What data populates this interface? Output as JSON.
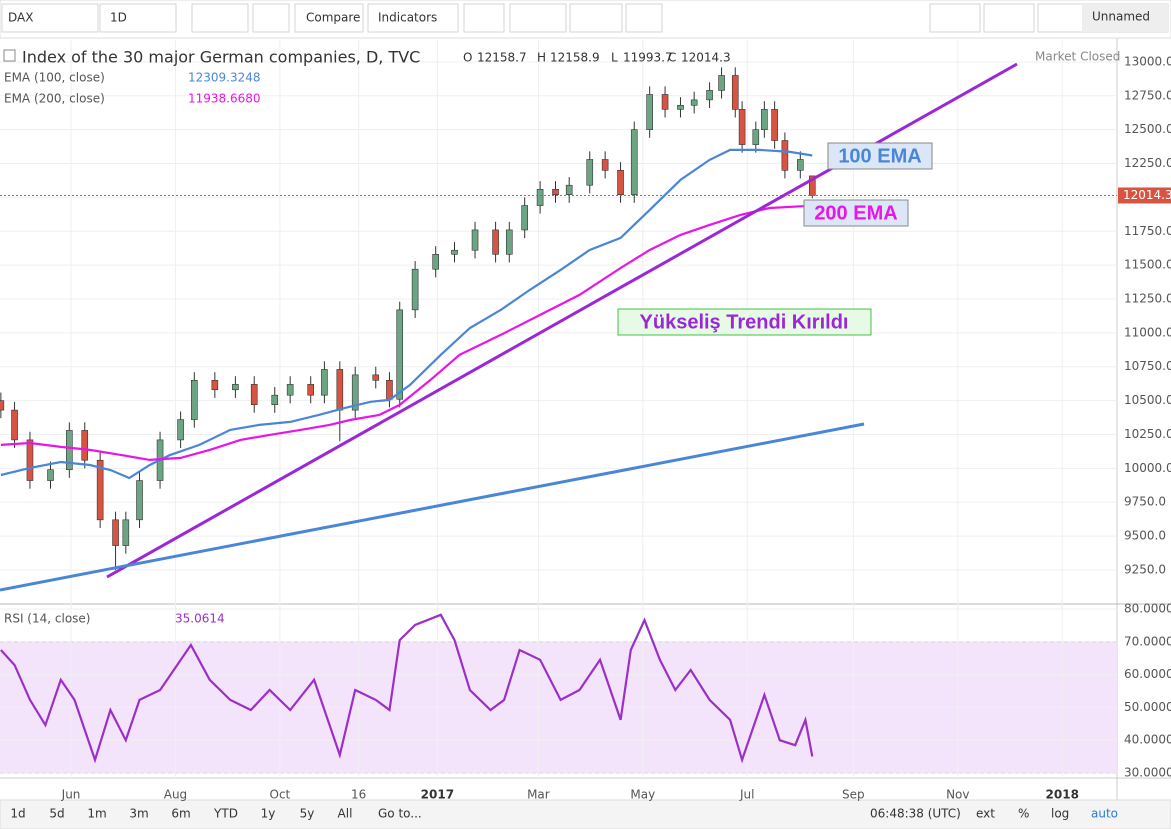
{
  "toolbar": {
    "symbol": "DAX",
    "interval": "1D",
    "compare": "Compare",
    "indicators": "Indicators",
    "layout": "Unnamed"
  },
  "bottom_bar": {
    "ranges": [
      "1d",
      "5d",
      "1m",
      "3m",
      "6m",
      "YTD",
      "1y",
      "5y",
      "All"
    ],
    "goto": "Go to...",
    "time": "06:48:38 (UTC)",
    "ext": "ext",
    "percent": "%",
    "log": "log",
    "auto": "auto"
  },
  "status": "Market Closed",
  "annotations": [
    "100 EMA",
    "200 EMA",
    "Yükseliş Trendi Kırıldı"
  ],
  "ohlc_letters": [
    "O",
    "H",
    "L",
    "C"
  ],
  "chart_data": [
    {
      "type": "candlestick",
      "title": "Index of the 30 major German companies, D, TVC",
      "xlim": [
        -41.5,
        611
      ],
      "ylim": [
        9006,
        13162
      ],
      "grid": true,
      "yticks": [
        {
          "value": 9250,
          "label": "9250.0"
        },
        {
          "value": 9500,
          "label": "9500.0"
        },
        {
          "value": 9750,
          "label": "9750.0"
        },
        {
          "value": 10000,
          "label": "10000.0"
        },
        {
          "value": 10250,
          "label": "10250.0"
        },
        {
          "value": 10500,
          "label": "10500.0"
        },
        {
          "value": 10750,
          "label": "10750.0"
        },
        {
          "value": 11000,
          "label": "11000.0"
        },
        {
          "value": 11250,
          "label": "11250.0"
        },
        {
          "value": 11500,
          "label": "11500.0"
        },
        {
          "value": 11750,
          "label": "11750.0"
        },
        {
          "value": 12000,
          "label": "12000.0"
        },
        {
          "value": 12250,
          "label": "12250.0"
        },
        {
          "value": 12500,
          "label": "12500.0"
        },
        {
          "value": 12750,
          "label": "12750.0"
        },
        {
          "value": 13000,
          "label": "13000.0"
        }
      ],
      "series": [
        {
          "type": "candlestick",
          "up_color": "#6ba583",
          "down_color": "#d75442",
          "x": [
            -41,
            -33,
            -24,
            -12,
            -1,
            8,
            17,
            26,
            32,
            40,
            52,
            64,
            72,
            84,
            96,
            107,
            119,
            128,
            140,
            148,
            157,
            166,
            178,
            186,
            192,
            201,
            213,
            224,
            236,
            248,
            256,
            265,
            274,
            283,
            291,
            303,
            312,
            321,
            329,
            338,
            347,
            356,
            364,
            373,
            380,
            388,
            392,
            400,
            405,
            411,
            417,
            426,
            433
          ],
          "open": [
            10500,
            10430,
            10210,
            9910,
            9990,
            10280,
            10060,
            9620,
            9430,
            9620,
            9910,
            10210,
            10360,
            10650,
            10580,
            10620,
            10470,
            10540,
            10620,
            10540,
            10730,
            10430,
            10690,
            10650,
            10510,
            11170,
            11470,
            11580,
            11610,
            11760,
            11580,
            11760,
            11940,
            12060,
            12020,
            12090,
            12280,
            12200,
            12020,
            12500,
            12760,
            12650,
            12680,
            12720,
            12790,
            12900,
            12650,
            12390,
            12500,
            12650,
            12420,
            12200,
            12158.7
          ],
          "high": [
            10560,
            10490,
            10270,
            10050,
            10340,
            10340,
            10120,
            9680,
            9680,
            9970,
            10270,
            10420,
            10710,
            10710,
            10680,
            10680,
            10600,
            10680,
            10680,
            10790,
            10790,
            10750,
            10750,
            10710,
            11230,
            11530,
            11640,
            11670,
            11820,
            11820,
            11820,
            12000,
            12120,
            12120,
            12150,
            12340,
            12340,
            12260,
            12560,
            12820,
            12820,
            12740,
            12780,
            12850,
            12960,
            12960,
            12710,
            12560,
            12710,
            12710,
            12480,
            12340,
            12158.9
          ],
          "low": [
            10370,
            10150,
            9850,
            9850,
            9930,
            10000,
            9560,
            9250,
            9370,
            9560,
            9850,
            10150,
            10300,
            10520,
            10520,
            10410,
            10410,
            10480,
            10480,
            10480,
            10200,
            10370,
            10590,
            10450,
            10450,
            11110,
            11410,
            11520,
            11550,
            11520,
            11520,
            11700,
            11880,
            11960,
            11960,
            12030,
            12140,
            11960,
            11960,
            12440,
            12590,
            12590,
            12620,
            12660,
            12730,
            12590,
            12330,
            12330,
            12440,
            12360,
            12140,
            12140,
            11993.7
          ],
          "close": [
            10430,
            10210,
            9910,
            9990,
            10280,
            10060,
            9620,
            9430,
            9620,
            9910,
            10210,
            10360,
            10650,
            10580,
            10620,
            10470,
            10540,
            10620,
            10540,
            10730,
            10430,
            10690,
            10650,
            10510,
            11170,
            11470,
            11580,
            11610,
            11760,
            11580,
            11760,
            11940,
            12060,
            12020,
            12090,
            12280,
            12200,
            12020,
            12500,
            12760,
            12650,
            12680,
            12720,
            12790,
            12900,
            12650,
            12390,
            12500,
            12650,
            12420,
            12200,
            12280,
            12014.3
          ]
        },
        {
          "type": "line",
          "name": "EMA (100, close)",
          "color": "#4a86d8",
          "x": [
            -41,
            -24,
            -6,
            11,
            23,
            34,
            46,
            58,
            75,
            93,
            110,
            128,
            145,
            160,
            175,
            186,
            198,
            216,
            233,
            251,
            268,
            286,
            303,
            321,
            338,
            356,
            373,
            385,
            402,
            420,
            433
          ],
          "values": [
            9951,
            10003,
            10047,
            10025,
            9988,
            9929,
            10025,
            10099,
            10173,
            10284,
            10321,
            10343,
            10395,
            10446,
            10491,
            10505,
            10616,
            10838,
            11036,
            11169,
            11317,
            11465,
            11612,
            11701,
            11908,
            12129,
            12277,
            12351,
            12351,
            12336,
            12309.3248
          ]
        },
        {
          "type": "line",
          "name": "EMA (200, close)",
          "color": "#e815e8",
          "x": [
            -41,
            -24,
            -6,
            11,
            29,
            46,
            64,
            81,
            99,
            116,
            134,
            151,
            163,
            180,
            192,
            210,
            227,
            251,
            274,
            297,
            321,
            338,
            356,
            373,
            391,
            408,
            433
          ],
          "values": [
            10173,
            10187,
            10158,
            10136,
            10099,
            10062,
            10077,
            10136,
            10210,
            10247,
            10284,
            10321,
            10357,
            10394,
            10468,
            10653,
            10838,
            10985,
            11133,
            11280,
            11479,
            11612,
            11723,
            11797,
            11871,
            11922,
            11938.668
          ],
          "value_labels": [
            null,
            null,
            null,
            null,
            null,
            null,
            null,
            null,
            null,
            null,
            null,
            null,
            null,
            null,
            null,
            null,
            null,
            null,
            null,
            null,
            null,
            null,
            null,
            null,
            null,
            null,
            "11938.6680"
          ]
        }
      ]
    },
    {
      "type": "line",
      "title": "RSI (14, close)",
      "color": "#9b30c8",
      "xlim": [
        -41.5,
        611
      ],
      "ylim": [
        28.5,
        81.2
      ],
      "band": [
        30,
        70
      ],
      "band_color": "#f4e4fb",
      "grid": true,
      "yticks": [
        {
          "value": 30,
          "label": "30.0000"
        },
        {
          "value": 40,
          "label": "40.0000"
        },
        {
          "value": 50,
          "label": "50.0000"
        },
        {
          "value": 60,
          "label": "60.0000"
        },
        {
          "value": 70,
          "label": "70.0000"
        },
        {
          "value": 80,
          "label": "80.0000"
        }
      ],
      "xticks": [
        {
          "value": 0,
          "label": "Jun"
        },
        {
          "value": 61,
          "label": "Aug"
        },
        {
          "value": 122,
          "label": "Oct"
        },
        {
          "value": 168,
          "label": "16"
        },
        {
          "value": 214,
          "label": "2017"
        },
        {
          "value": 273,
          "label": "Mar"
        },
        {
          "value": 334,
          "label": "May"
        },
        {
          "value": 395,
          "label": "Jul"
        },
        {
          "value": 457,
          "label": "Sep"
        },
        {
          "value": 518,
          "label": "Nov"
        },
        {
          "value": 579,
          "label": "2018"
        }
      ],
      "x": [
        -41,
        -33,
        -24,
        -15,
        -6,
        2,
        14,
        23,
        32,
        40,
        52,
        70,
        81,
        93,
        105,
        116,
        128,
        142,
        157,
        166,
        178,
        186,
        192,
        201,
        216,
        224,
        233,
        245,
        253,
        262,
        274,
        286,
        297,
        309,
        321,
        327,
        335,
        344,
        353,
        362,
        373,
        385,
        392,
        400,
        405,
        414,
        423,
        429,
        433
      ],
      "values": [
        67.5,
        62.9,
        52.3,
        44.6,
        58.4,
        52.3,
        34,
        49.2,
        40,
        52.3,
        55.3,
        69,
        58.4,
        52.3,
        49.2,
        55.3,
        49.2,
        58.4,
        35.5,
        55.3,
        52.3,
        49.2,
        70.5,
        75.1,
        78.2,
        70.5,
        55.3,
        49.2,
        52.3,
        67.5,
        64.5,
        52.3,
        55.3,
        64.5,
        46.2,
        67.5,
        76.6,
        64.5,
        55.3,
        61.4,
        52.3,
        46.2,
        34,
        46.2,
        53.8,
        40,
        38.5,
        46.2,
        35.0614
      ]
    }
  ]
}
